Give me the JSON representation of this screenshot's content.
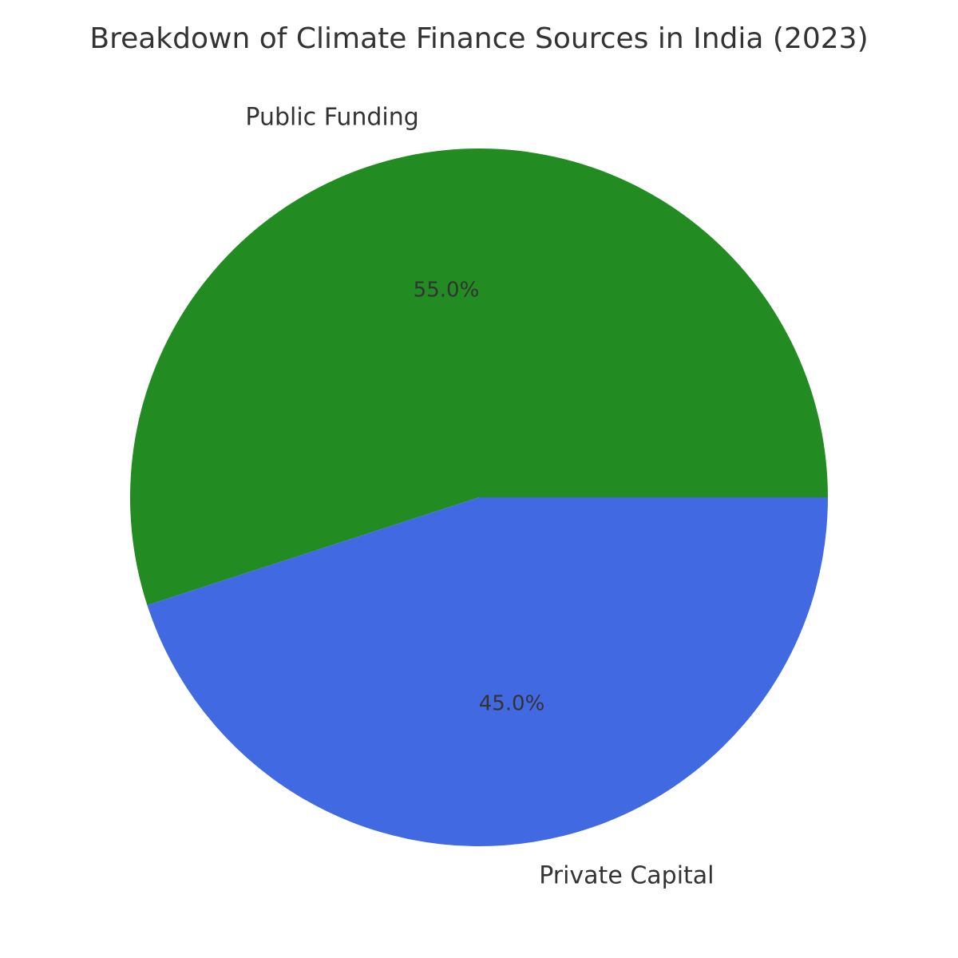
{
  "chart_data": {
    "type": "pie",
    "title": "Breakdown of Climate Finance Sources in India (2023)",
    "categories": [
      "Public Funding",
      "Private Capital"
    ],
    "values": [
      55.0,
      45.0
    ],
    "value_labels": [
      "55.0%",
      "45.0%"
    ],
    "colors": [
      "#228B22",
      "#4169E1"
    ],
    "start_angle_deg": 0,
    "direction": "counterclockwise",
    "legend": "none"
  }
}
